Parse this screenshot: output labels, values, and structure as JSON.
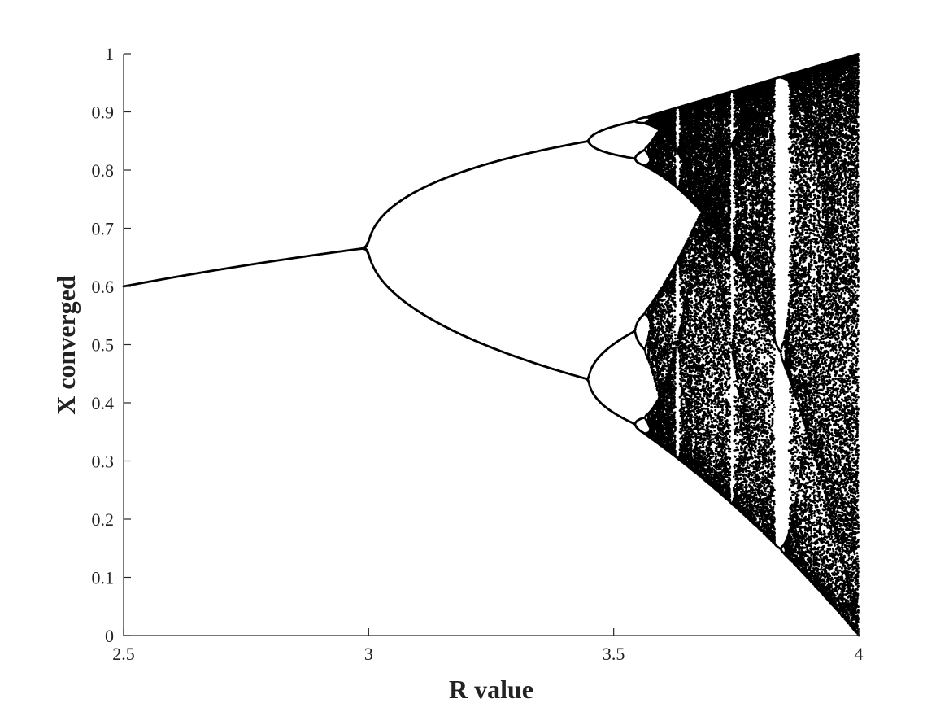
{
  "chart_data": {
    "type": "scatter",
    "title": "",
    "xlabel": "R value",
    "ylabel": "X converged",
    "xlim": [
      2.5,
      4
    ],
    "ylim": [
      0,
      1
    ],
    "x_ticks": [
      "2.5",
      "3",
      "3.5",
      "4"
    ],
    "y_ticks": [
      "0",
      "0.1",
      "0.2",
      "0.3",
      "0.4",
      "0.5",
      "0.6",
      "0.7",
      "0.8",
      "0.9",
      "1"
    ],
    "grid": false,
    "legend": "none",
    "series": [
      {
        "description": "logistic map x(n+1) = r·x(n)·(1−x(n)), long-run values of x for each r",
        "x_range": [
          2.5,
          4
        ],
        "marker": "dot",
        "color": "#000000"
      }
    ],
    "background": "#ffffff",
    "axis_color": "#262626"
  }
}
